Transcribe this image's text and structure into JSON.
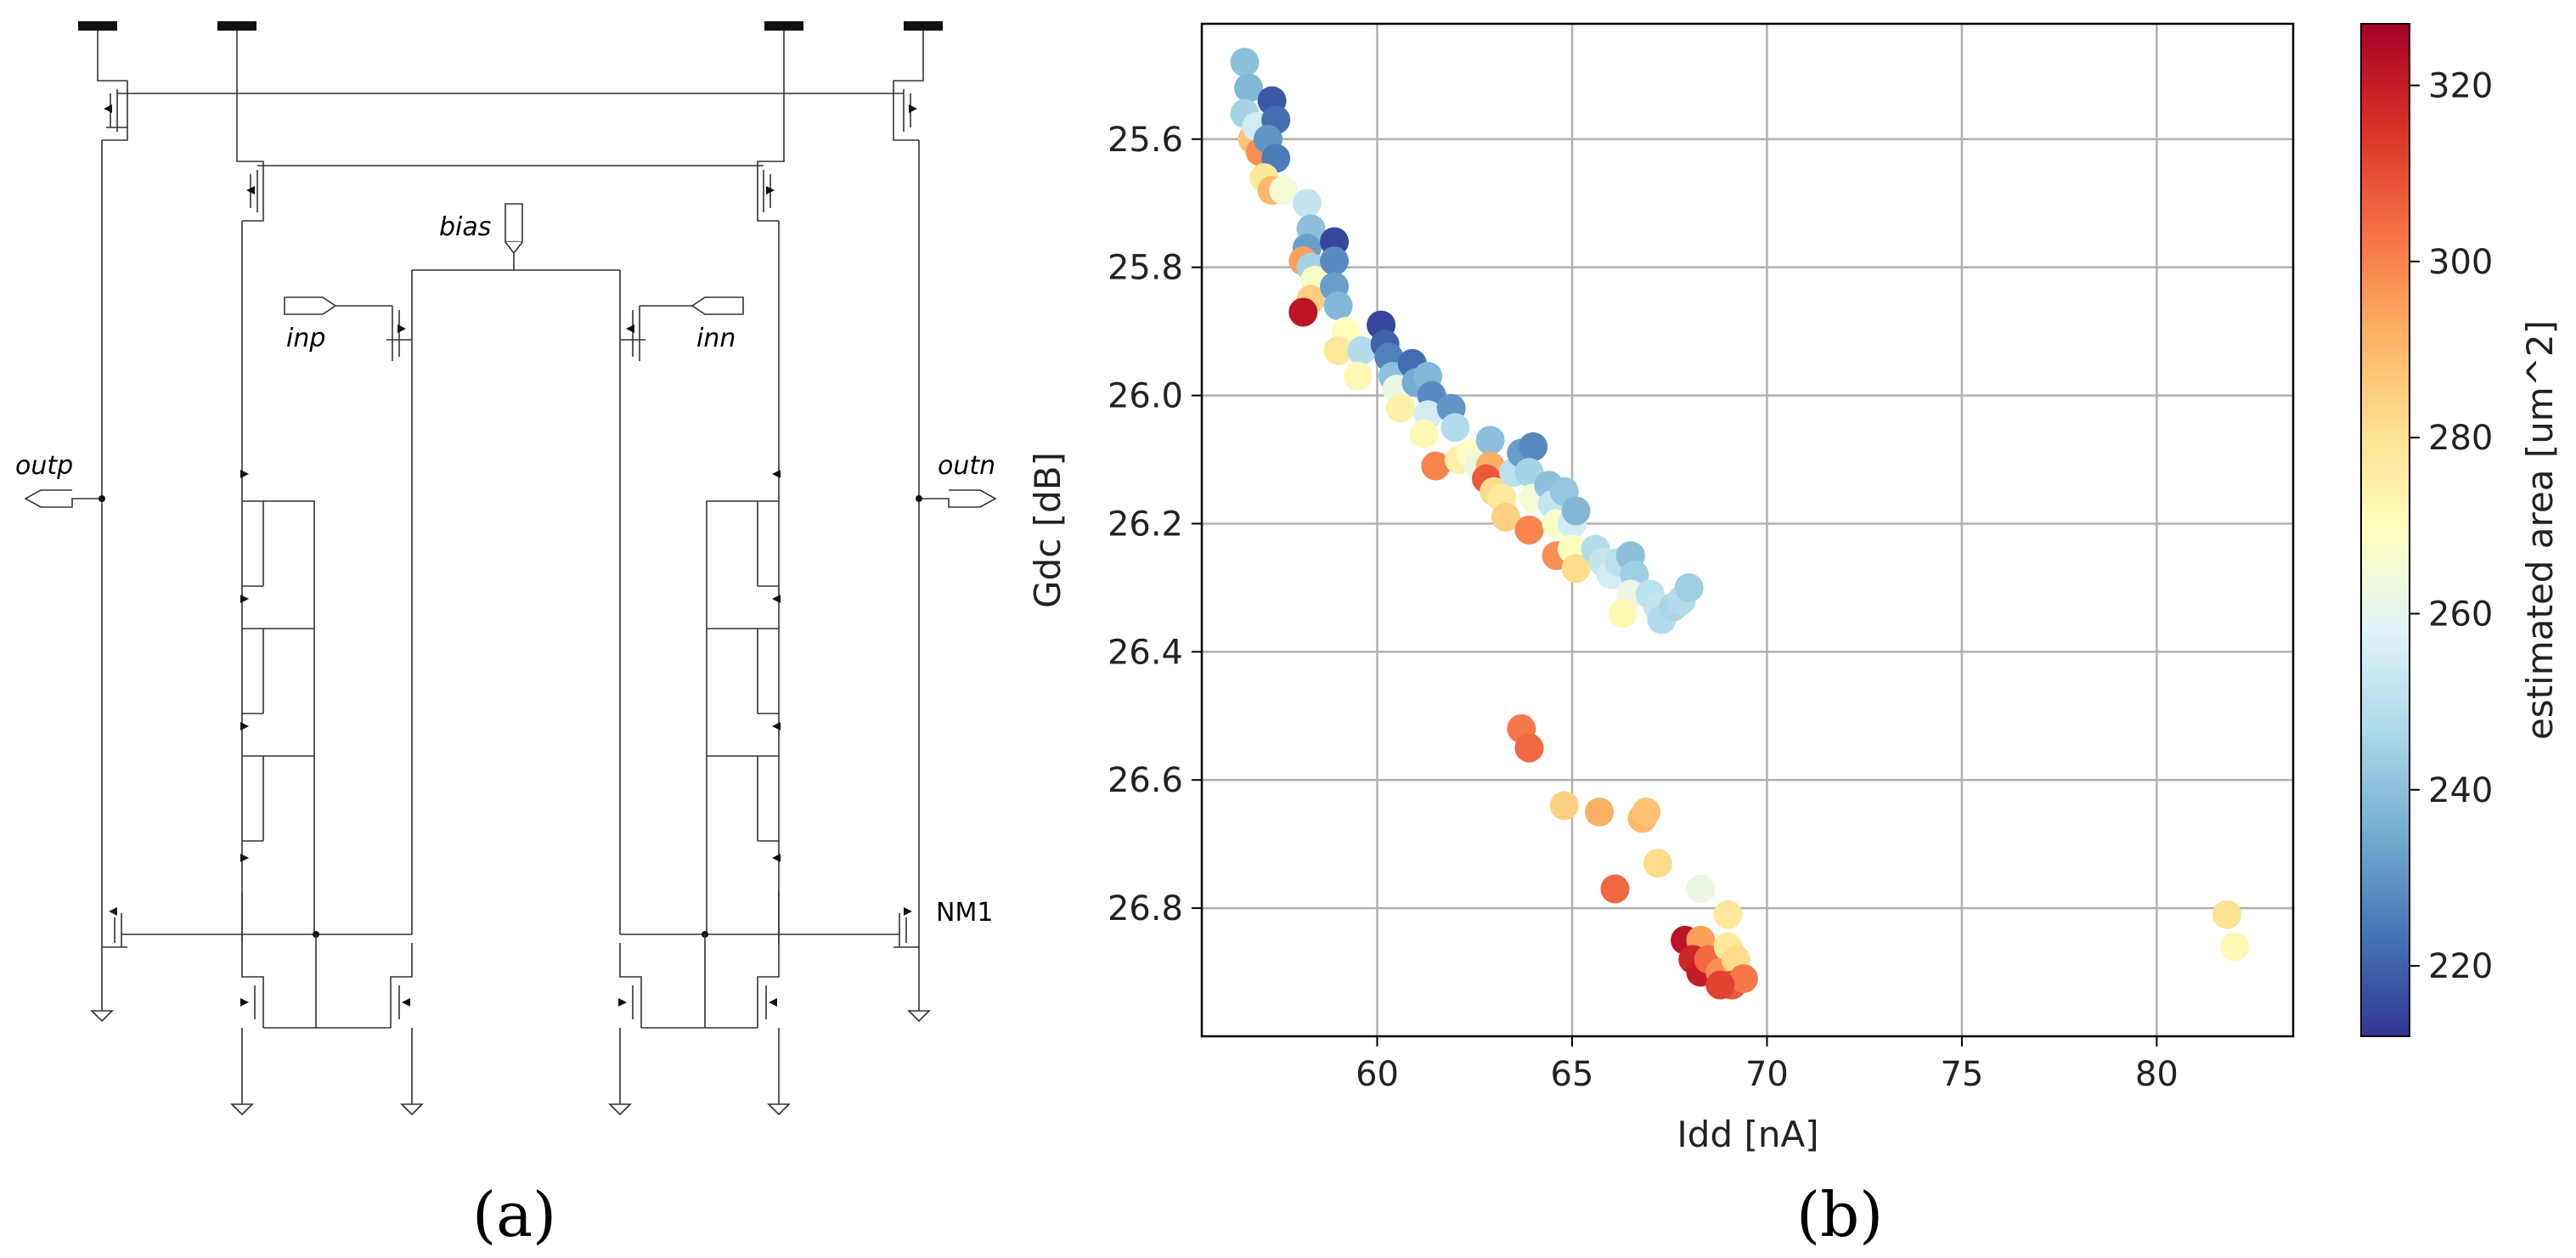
{
  "panel_a": {
    "caption": "(a)",
    "labels": {
      "bias": "bias",
      "inp": "inp",
      "inn": "inn",
      "outp": "outp",
      "outn": "outn",
      "nm1": "NM1"
    }
  },
  "panel_b": {
    "caption": "(b)"
  },
  "chart_data": {
    "type": "scatter",
    "title": "",
    "xlabel": "Idd [nA]",
    "ylabel": "Gdc [dB]",
    "xlim": [
      55.5,
      83.5
    ],
    "ylim": [
      25.42,
      27.0
    ],
    "y_inverted": true,
    "grid": true,
    "x_ticks": [
      60,
      65,
      70,
      75,
      80
    ],
    "y_ticks": [
      25.6,
      25.8,
      26.0,
      26.2,
      26.4,
      26.6,
      26.8
    ],
    "y_tick_labels": [
      "25.6",
      "25.8",
      "26.0",
      "26.2",
      "26.4",
      "26.6",
      "26.8"
    ],
    "colorbar": {
      "label": "estimated area [um^2]",
      "range": [
        212,
        327
      ],
      "ticks": [
        220,
        240,
        260,
        280,
        300,
        320
      ],
      "colormap": "RdYlBu_r",
      "stops": [
        "#313695",
        "#4575b4",
        "#74add1",
        "#abd9e9",
        "#e0f3f8",
        "#ffffbf",
        "#fee090",
        "#fdae61",
        "#f46d43",
        "#d73027",
        "#a50026"
      ]
    },
    "points": [
      {
        "x": 56.6,
        "y": 25.48,
        "c": 240
      },
      {
        "x": 56.7,
        "y": 25.52,
        "c": 238
      },
      {
        "x": 56.6,
        "y": 25.56,
        "c": 245
      },
      {
        "x": 56.8,
        "y": 25.6,
        "c": 288
      },
      {
        "x": 57.0,
        "y": 25.62,
        "c": 298
      },
      {
        "x": 56.9,
        "y": 25.58,
        "c": 255
      },
      {
        "x": 57.3,
        "y": 25.54,
        "c": 218
      },
      {
        "x": 57.4,
        "y": 25.57,
        "c": 222
      },
      {
        "x": 57.2,
        "y": 25.6,
        "c": 230
      },
      {
        "x": 57.4,
        "y": 25.63,
        "c": 225
      },
      {
        "x": 57.1,
        "y": 25.66,
        "c": 278
      },
      {
        "x": 57.3,
        "y": 25.68,
        "c": 290
      },
      {
        "x": 57.6,
        "y": 25.68,
        "c": 265
      },
      {
        "x": 58.2,
        "y": 25.7,
        "c": 252
      },
      {
        "x": 58.3,
        "y": 25.74,
        "c": 240
      },
      {
        "x": 58.2,
        "y": 25.77,
        "c": 232
      },
      {
        "x": 58.1,
        "y": 25.79,
        "c": 295
      },
      {
        "x": 58.3,
        "y": 25.8,
        "c": 245
      },
      {
        "x": 58.4,
        "y": 25.82,
        "c": 268
      },
      {
        "x": 58.3,
        "y": 25.85,
        "c": 285
      },
      {
        "x": 58.1,
        "y": 25.87,
        "c": 322
      },
      {
        "x": 58.9,
        "y": 25.76,
        "c": 215
      },
      {
        "x": 58.9,
        "y": 25.79,
        "c": 228
      },
      {
        "x": 58.9,
        "y": 25.83,
        "c": 232
      },
      {
        "x": 59.0,
        "y": 25.86,
        "c": 238
      },
      {
        "x": 59.2,
        "y": 25.9,
        "c": 270
      },
      {
        "x": 59.0,
        "y": 25.93,
        "c": 278
      },
      {
        "x": 59.6,
        "y": 25.93,
        "c": 248
      },
      {
        "x": 59.5,
        "y": 25.97,
        "c": 272
      },
      {
        "x": 60.1,
        "y": 25.89,
        "c": 215
      },
      {
        "x": 60.2,
        "y": 25.92,
        "c": 220
      },
      {
        "x": 60.3,
        "y": 25.94,
        "c": 226
      },
      {
        "x": 60.4,
        "y": 25.97,
        "c": 240
      },
      {
        "x": 60.5,
        "y": 25.99,
        "c": 262
      },
      {
        "x": 60.6,
        "y": 26.02,
        "c": 275
      },
      {
        "x": 60.9,
        "y": 25.95,
        "c": 222
      },
      {
        "x": 61.0,
        "y": 25.98,
        "c": 235
      },
      {
        "x": 61.3,
        "y": 25.97,
        "c": 238
      },
      {
        "x": 61.4,
        "y": 26.0,
        "c": 228
      },
      {
        "x": 61.3,
        "y": 26.03,
        "c": 255
      },
      {
        "x": 61.2,
        "y": 26.06,
        "c": 272
      },
      {
        "x": 61.5,
        "y": 26.11,
        "c": 300
      },
      {
        "x": 61.9,
        "y": 26.02,
        "c": 230
      },
      {
        "x": 62.0,
        "y": 26.05,
        "c": 248
      },
      {
        "x": 62.1,
        "y": 26.1,
        "c": 275
      },
      {
        "x": 62.4,
        "y": 26.09,
        "c": 268
      },
      {
        "x": 62.6,
        "y": 26.11,
        "c": 262
      },
      {
        "x": 62.9,
        "y": 26.07,
        "c": 240
      },
      {
        "x": 62.9,
        "y": 26.11,
        "c": 292
      },
      {
        "x": 62.8,
        "y": 26.13,
        "c": 308
      },
      {
        "x": 63.0,
        "y": 26.15,
        "c": 282
      },
      {
        "x": 63.2,
        "y": 26.16,
        "c": 278
      },
      {
        "x": 63.3,
        "y": 26.19,
        "c": 285
      },
      {
        "x": 63.5,
        "y": 26.12,
        "c": 250
      },
      {
        "x": 63.7,
        "y": 26.09,
        "c": 232
      },
      {
        "x": 64.0,
        "y": 26.08,
        "c": 228
      },
      {
        "x": 63.9,
        "y": 26.12,
        "c": 245
      },
      {
        "x": 64.0,
        "y": 26.16,
        "c": 265
      },
      {
        "x": 63.9,
        "y": 26.21,
        "c": 300
      },
      {
        "x": 64.4,
        "y": 26.14,
        "c": 240
      },
      {
        "x": 64.5,
        "y": 26.17,
        "c": 252
      },
      {
        "x": 64.6,
        "y": 26.2,
        "c": 268
      },
      {
        "x": 64.6,
        "y": 26.25,
        "c": 298
      },
      {
        "x": 64.8,
        "y": 26.15,
        "c": 242
      },
      {
        "x": 65.0,
        "y": 26.2,
        "c": 255
      },
      {
        "x": 65.1,
        "y": 26.18,
        "c": 238
      },
      {
        "x": 65.0,
        "y": 26.24,
        "c": 270
      },
      {
        "x": 65.1,
        "y": 26.27,
        "c": 282
      },
      {
        "x": 65.6,
        "y": 26.24,
        "c": 248
      },
      {
        "x": 65.8,
        "y": 26.26,
        "c": 252
      },
      {
        "x": 66.0,
        "y": 26.28,
        "c": 255
      },
      {
        "x": 66.2,
        "y": 26.26,
        "c": 250
      },
      {
        "x": 66.5,
        "y": 26.25,
        "c": 240
      },
      {
        "x": 66.6,
        "y": 26.28,
        "c": 244
      },
      {
        "x": 66.5,
        "y": 26.31,
        "c": 262
      },
      {
        "x": 66.3,
        "y": 26.34,
        "c": 272
      },
      {
        "x": 67.0,
        "y": 26.31,
        "c": 250
      },
      {
        "x": 67.2,
        "y": 26.33,
        "c": 252
      },
      {
        "x": 67.3,
        "y": 26.35,
        "c": 248
      },
      {
        "x": 67.6,
        "y": 26.33,
        "c": 246
      },
      {
        "x": 67.8,
        "y": 26.32,
        "c": 248
      },
      {
        "x": 68.0,
        "y": 26.3,
        "c": 244
      },
      {
        "x": 63.7,
        "y": 26.52,
        "c": 302
      },
      {
        "x": 63.9,
        "y": 26.55,
        "c": 305
      },
      {
        "x": 64.8,
        "y": 26.64,
        "c": 285
      },
      {
        "x": 65.7,
        "y": 26.65,
        "c": 292
      },
      {
        "x": 66.8,
        "y": 26.66,
        "c": 290
      },
      {
        "x": 66.9,
        "y": 26.65,
        "c": 288
      },
      {
        "x": 67.2,
        "y": 26.73,
        "c": 282
      },
      {
        "x": 66.1,
        "y": 26.77,
        "c": 305
      },
      {
        "x": 68.3,
        "y": 26.77,
        "c": 262
      },
      {
        "x": 69.0,
        "y": 26.81,
        "c": 278
      },
      {
        "x": 67.9,
        "y": 26.85,
        "c": 322
      },
      {
        "x": 68.3,
        "y": 26.85,
        "c": 295
      },
      {
        "x": 68.1,
        "y": 26.88,
        "c": 318
      },
      {
        "x": 68.3,
        "y": 26.9,
        "c": 320
      },
      {
        "x": 68.5,
        "y": 26.88,
        "c": 305
      },
      {
        "x": 68.8,
        "y": 26.9,
        "c": 298
      },
      {
        "x": 69.0,
        "y": 26.86,
        "c": 278
      },
      {
        "x": 69.2,
        "y": 26.88,
        "c": 282
      },
      {
        "x": 69.1,
        "y": 26.92,
        "c": 308
      },
      {
        "x": 69.4,
        "y": 26.91,
        "c": 302
      },
      {
        "x": 68.8,
        "y": 26.92,
        "c": 312
      },
      {
        "x": 81.8,
        "y": 26.81,
        "c": 280
      },
      {
        "x": 82.0,
        "y": 26.86,
        "c": 272
      }
    ]
  }
}
